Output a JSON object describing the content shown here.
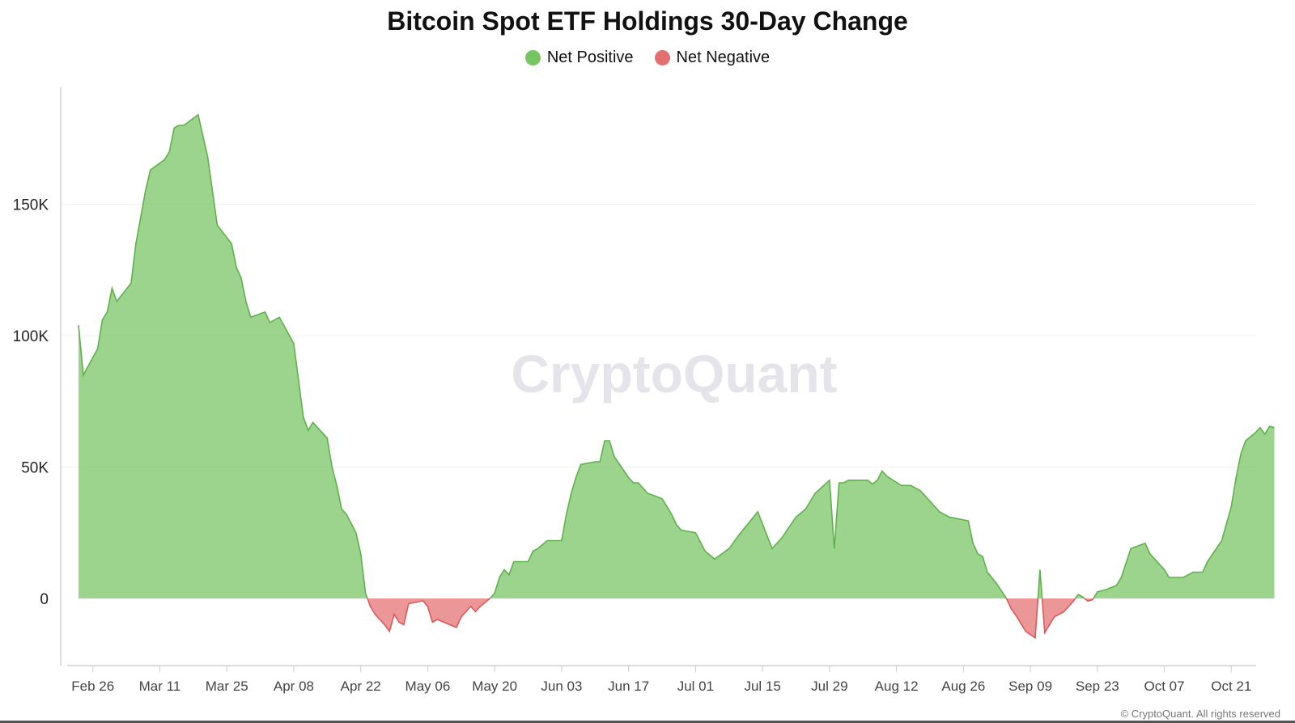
{
  "chart_data": {
    "type": "area",
    "title": "Bitcoin Spot ETF Holdings 30-Day Change",
    "legend": [
      {
        "label": "Net Positive",
        "color": "#76c462"
      },
      {
        "label": "Net Negative",
        "color": "#e36f6f"
      }
    ],
    "legend_position": "top-center",
    "watermark": "CryptoQuant",
    "copyright": "© CryptoQuant. All rights reserved",
    "y_ticks": [
      {
        "value": 0,
        "label": "0"
      },
      {
        "value": 50000,
        "label": "50K"
      },
      {
        "value": 100000,
        "label": "100K"
      },
      {
        "value": 150000,
        "label": "150K"
      }
    ],
    "x_ticks": [
      {
        "date": "2024-02-26",
        "label": "Feb 26"
      },
      {
        "date": "2024-03-11",
        "label": "Mar 11"
      },
      {
        "date": "2024-03-25",
        "label": "Mar 25"
      },
      {
        "date": "2024-04-08",
        "label": "Apr 08"
      },
      {
        "date": "2024-04-22",
        "label": "Apr 22"
      },
      {
        "date": "2024-05-06",
        "label": "May 06"
      },
      {
        "date": "2024-05-20",
        "label": "May 20"
      },
      {
        "date": "2024-06-03",
        "label": "Jun 03"
      },
      {
        "date": "2024-06-17",
        "label": "Jun 17"
      },
      {
        "date": "2024-07-01",
        "label": "Jul 01"
      },
      {
        "date": "2024-07-15",
        "label": "Jul 15"
      },
      {
        "date": "2024-07-29",
        "label": "Jul 29"
      },
      {
        "date": "2024-08-12",
        "label": "Aug 12"
      },
      {
        "date": "2024-08-26",
        "label": "Aug 26"
      },
      {
        "date": "2024-09-09",
        "label": "Sep 09"
      },
      {
        "date": "2024-09-23",
        "label": "Sep 23"
      },
      {
        "date": "2024-10-07",
        "label": "Oct 07"
      },
      {
        "date": "2024-10-21",
        "label": "Oct 21"
      }
    ],
    "ylim": [
      -25000,
      193000
    ],
    "xlim": [
      "2024-02-23",
      "2024-10-25"
    ],
    "grid": "horizontal",
    "series": [
      {
        "points": [
          [
            "2024-02-23",
            104000
          ],
          [
            "2024-02-24",
            85000
          ],
          [
            "2024-02-27",
            95000
          ],
          [
            "2024-02-28",
            106000
          ],
          [
            "2024-02-29",
            109000
          ],
          [
            "2024-03-01",
            118000
          ],
          [
            "2024-03-02",
            113000
          ],
          [
            "2024-03-05",
            120000
          ],
          [
            "2024-03-06",
            135000
          ],
          [
            "2024-03-08",
            155000
          ],
          [
            "2024-03-09",
            163000
          ],
          [
            "2024-03-12",
            167000
          ],
          [
            "2024-03-13",
            170000
          ],
          [
            "2024-03-14",
            179000
          ],
          [
            "2024-03-15",
            180000
          ],
          [
            "2024-03-16",
            180000
          ],
          [
            "2024-03-19",
            184000
          ],
          [
            "2024-03-21",
            168000
          ],
          [
            "2024-03-23",
            142000
          ],
          [
            "2024-03-26",
            135000
          ],
          [
            "2024-03-27",
            126000
          ],
          [
            "2024-03-28",
            122000
          ],
          [
            "2024-03-29",
            113000
          ],
          [
            "2024-03-30",
            107000
          ],
          [
            "2024-04-02",
            109000
          ],
          [
            "2024-04-03",
            105000
          ],
          [
            "2024-04-05",
            107000
          ],
          [
            "2024-04-08",
            97000
          ],
          [
            "2024-04-10",
            69000
          ],
          [
            "2024-04-11",
            64000
          ],
          [
            "2024-04-12",
            67000
          ],
          [
            "2024-04-15",
            61000
          ],
          [
            "2024-04-16",
            50000
          ],
          [
            "2024-04-17",
            43000
          ],
          [
            "2024-04-18",
            34000
          ],
          [
            "2024-04-19",
            32000
          ],
          [
            "2024-04-21",
            25000
          ],
          [
            "2024-04-22",
            17000
          ],
          [
            "2024-04-23",
            2000
          ],
          [
            "2024-04-24",
            -3000
          ],
          [
            "2024-04-25",
            -6000
          ],
          [
            "2024-04-27",
            -10000
          ],
          [
            "2024-04-28",
            -12500
          ],
          [
            "2024-04-29",
            -6000
          ],
          [
            "2024-04-30",
            -9000
          ],
          [
            "2024-05-01",
            -10000
          ],
          [
            "2024-05-02",
            -2000
          ],
          [
            "2024-05-05",
            -900
          ],
          [
            "2024-05-06",
            -3000
          ],
          [
            "2024-05-07",
            -9000
          ],
          [
            "2024-05-08",
            -8000
          ],
          [
            "2024-05-12",
            -11000
          ],
          [
            "2024-05-13",
            -7000
          ],
          [
            "2024-05-15",
            -3000
          ],
          [
            "2024-05-16",
            -5000
          ],
          [
            "2024-05-17",
            -3000
          ],
          [
            "2024-05-19",
            0
          ],
          [
            "2024-05-20",
            2000
          ],
          [
            "2024-05-21",
            8000
          ],
          [
            "2024-05-22",
            11000
          ],
          [
            "2024-05-23",
            9000
          ],
          [
            "2024-05-24",
            14000
          ],
          [
            "2024-05-27",
            14000
          ],
          [
            "2024-05-28",
            18000
          ],
          [
            "2024-05-29",
            19000
          ],
          [
            "2024-05-31",
            22000
          ],
          [
            "2024-06-03",
            22000
          ],
          [
            "2024-06-04",
            32000
          ],
          [
            "2024-06-05",
            40000
          ],
          [
            "2024-06-06",
            46000
          ],
          [
            "2024-06-07",
            51000
          ],
          [
            "2024-06-10",
            52000
          ],
          [
            "2024-06-11",
            52000
          ],
          [
            "2024-06-12",
            60000
          ],
          [
            "2024-06-13",
            60000
          ],
          [
            "2024-06-14",
            54000
          ],
          [
            "2024-06-17",
            46000
          ],
          [
            "2024-06-18",
            44000
          ],
          [
            "2024-06-19",
            44000
          ],
          [
            "2024-06-21",
            40000
          ],
          [
            "2024-06-24",
            38000
          ],
          [
            "2024-06-26",
            32000
          ],
          [
            "2024-06-27",
            28000
          ],
          [
            "2024-06-28",
            26000
          ],
          [
            "2024-07-01",
            25000
          ],
          [
            "2024-07-03",
            18000
          ],
          [
            "2024-07-05",
            15000
          ],
          [
            "2024-07-08",
            19000
          ],
          [
            "2024-07-10",
            24000
          ],
          [
            "2024-07-14",
            33000
          ],
          [
            "2024-07-17",
            19000
          ],
          [
            "2024-07-19",
            23000
          ],
          [
            "2024-07-22",
            31000
          ],
          [
            "2024-07-24",
            34000
          ],
          [
            "2024-07-26",
            40000
          ],
          [
            "2024-07-29",
            45000
          ],
          [
            "2024-07-30",
            19000
          ],
          [
            "2024-07-31",
            44000
          ],
          [
            "2024-08-01",
            44000
          ],
          [
            "2024-08-02",
            45000
          ],
          [
            "2024-08-06",
            45000
          ],
          [
            "2024-08-07",
            43500
          ],
          [
            "2024-08-08",
            45000
          ],
          [
            "2024-08-09",
            48500
          ],
          [
            "2024-08-10",
            46500
          ],
          [
            "2024-08-13",
            43000
          ],
          [
            "2024-08-15",
            43000
          ],
          [
            "2024-08-17",
            41000
          ],
          [
            "2024-08-19",
            37000
          ],
          [
            "2024-08-21",
            33000
          ],
          [
            "2024-08-23",
            31000
          ],
          [
            "2024-08-27",
            29500
          ],
          [
            "2024-08-28",
            21000
          ],
          [
            "2024-08-29",
            17000
          ],
          [
            "2024-08-30",
            16000
          ],
          [
            "2024-08-31",
            10000
          ],
          [
            "2024-09-02",
            5500
          ],
          [
            "2024-09-04",
            0
          ],
          [
            "2024-09-05",
            -4000
          ],
          [
            "2024-09-06",
            -6500
          ],
          [
            "2024-09-08",
            -12500
          ],
          [
            "2024-09-10",
            -15000
          ],
          [
            "2024-09-11",
            11000
          ],
          [
            "2024-09-12",
            -13000
          ],
          [
            "2024-09-13",
            -10000
          ],
          [
            "2024-09-14",
            -7000
          ],
          [
            "2024-09-16",
            -5000
          ],
          [
            "2024-09-18",
            -1000
          ],
          [
            "2024-09-19",
            1500
          ],
          [
            "2024-09-20",
            500
          ],
          [
            "2024-09-21",
            -1000
          ],
          [
            "2024-09-22",
            -500
          ],
          [
            "2024-09-23",
            2500
          ],
          [
            "2024-09-25",
            3500
          ],
          [
            "2024-09-27",
            5000
          ],
          [
            "2024-09-28",
            8000
          ],
          [
            "2024-09-30",
            19000
          ],
          [
            "2024-10-03",
            21000
          ],
          [
            "2024-10-04",
            17000
          ],
          [
            "2024-10-07",
            11000
          ],
          [
            "2024-10-08",
            8000
          ],
          [
            "2024-10-11",
            8000
          ],
          [
            "2024-10-13",
            10000
          ],
          [
            "2024-10-15",
            10000
          ],
          [
            "2024-10-16",
            14000
          ],
          [
            "2024-10-19",
            22000
          ],
          [
            "2024-10-21",
            35000
          ],
          [
            "2024-10-22",
            46000
          ],
          [
            "2024-10-23",
            55000
          ],
          [
            "2024-10-24",
            60000
          ],
          [
            "2024-10-26",
            63000
          ],
          [
            "2024-10-27",
            65000
          ],
          [
            "2024-10-28",
            62500
          ],
          [
            "2024-10-29",
            65500
          ],
          [
            "2024-10-30",
            65000
          ]
        ]
      }
    ]
  }
}
